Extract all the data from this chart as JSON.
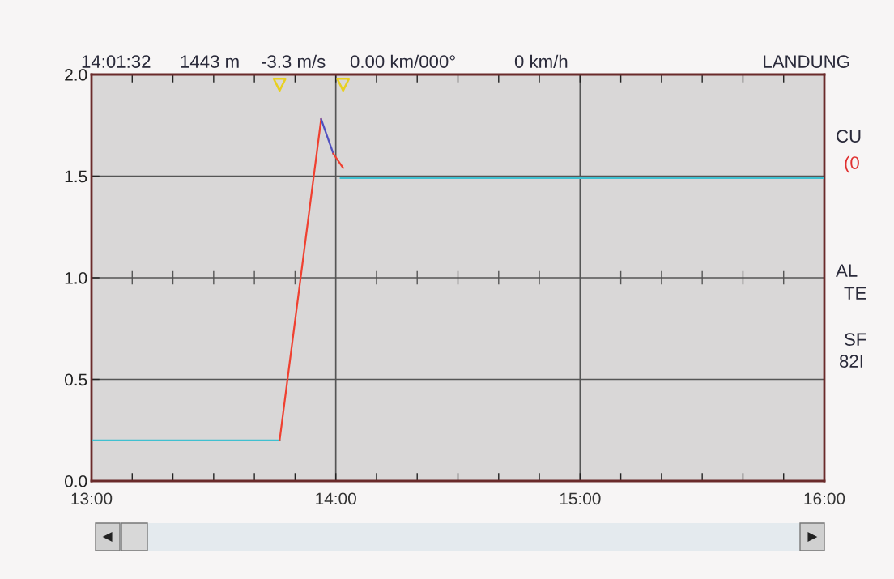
{
  "chart_data": {
    "type": "line",
    "annotations": [
      {
        "text": "14:01:32"
      },
      {
        "text": "1443 m"
      },
      {
        "text": "-3.3 m/s"
      },
      {
        "text": "0.00 km/000°"
      },
      {
        "text": "0 km/h"
      },
      {
        "text": "LANDUNG"
      },
      {
        "text": "CU"
      },
      {
        "text": "(0"
      },
      {
        "text": "AL"
      },
      {
        "text": "TE"
      },
      {
        "text": "SF"
      },
      {
        "text": "82I"
      }
    ],
    "series": [
      {
        "color": "#40c0d0",
        "x": [
          13,
          13.77
        ],
        "values": [
          0.2,
          0.2
        ]
      },
      {
        "color": "#f04030",
        "x": [
          13.77,
          13.94
        ],
        "values": [
          0.2,
          1.78
        ]
      },
      {
        "color": "#5050c0",
        "x": [
          13.94,
          13.99
        ],
        "values": [
          1.78,
          1.61
        ]
      },
      {
        "color": "#f04030",
        "x": [
          13.99,
          14.03
        ],
        "values": [
          1.61,
          1.54
        ]
      },
      {
        "color": "#40c0d0",
        "x": [
          14.02,
          16
        ],
        "values": [
          1.49,
          1.49
        ]
      },
      {
        "type": "scatter",
        "marker": "triangle",
        "color": "#e8d020",
        "x": [
          13.77,
          14.03
        ],
        "values": [
          1.95,
          1.95
        ]
      }
    ],
    "xlim": [
      13,
      16
    ],
    "xticks": [
      {
        "value": 13,
        "label": "13:00"
      },
      {
        "value": 13.1667,
        "label": null
      },
      {
        "value": 13.3333,
        "label": null
      },
      {
        "value": 13.5,
        "label": null
      },
      {
        "value": 13.6667,
        "label": null
      },
      {
        "value": 13.8333,
        "label": null
      },
      {
        "value": 14,
        "label": "14:00"
      },
      {
        "value": 14.1667,
        "label": null
      },
      {
        "value": 14.3333,
        "label": null
      },
      {
        "value": 14.5,
        "label": null
      },
      {
        "value": 14.6667,
        "label": null
      },
      {
        "value": 14.8333,
        "label": null
      },
      {
        "value": 15,
        "label": "15:00"
      },
      {
        "value": 15.1667,
        "label": null
      },
      {
        "value": 15.3333,
        "label": null
      },
      {
        "value": 15.5,
        "label": null
      },
      {
        "value": 15.6667,
        "label": null
      },
      {
        "value": 15.8333,
        "label": null
      },
      {
        "value": 16,
        "label": "16:00"
      }
    ],
    "ylim": [
      0,
      2.0
    ],
    "yticks": [
      {
        "value": 0,
        "label": "0.0"
      },
      {
        "value": 0.5,
        "label": "0.5"
      },
      {
        "value": 1,
        "label": "1.0"
      },
      {
        "value": 1.5,
        "label": "1.5"
      },
      {
        "value": 2,
        "label": "2.0"
      }
    ],
    "grid": true
  }
}
